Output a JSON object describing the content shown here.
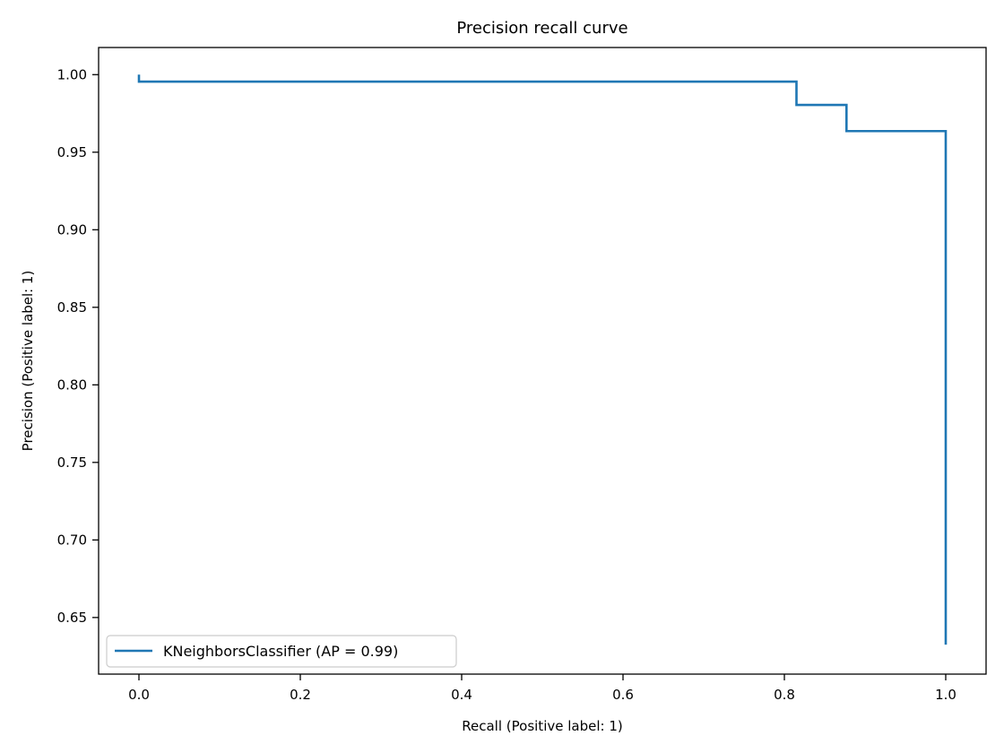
{
  "chart_data": {
    "type": "line",
    "title": "Precision recall curve",
    "xlabel": "Recall (Positive label: 1)",
    "ylabel": "Precision (Positive label: 1)",
    "xlim": [
      -0.05,
      1.05
    ],
    "ylim": [
      0.6135,
      1.0175
    ],
    "x_ticks": [
      0.0,
      0.2,
      0.4,
      0.6,
      0.8,
      1.0
    ],
    "x_tick_labels": [
      "0.0",
      "0.2",
      "0.4",
      "0.6",
      "0.8",
      "1.0"
    ],
    "y_ticks": [
      0.65,
      0.7,
      0.75,
      0.8,
      0.85,
      0.9,
      0.95,
      1.0
    ],
    "y_tick_labels": [
      "0.65",
      "0.70",
      "0.75",
      "0.80",
      "0.85",
      "0.90",
      "0.95",
      "1.00"
    ],
    "grid": false,
    "legend_position": "lower-left",
    "series": [
      {
        "name": "KNeighborsClassifier (AP = 0.99)",
        "color": "#1f77b4",
        "drawstyle": "steps-post",
        "recall": [
          0.0,
          0.0,
          0.815,
          0.815,
          0.877,
          0.877,
          1.0,
          1.0
        ],
        "precision": [
          1.0,
          0.9955,
          0.9955,
          0.9805,
          0.9805,
          0.9636,
          0.9636,
          0.6325
        ]
      }
    ]
  }
}
